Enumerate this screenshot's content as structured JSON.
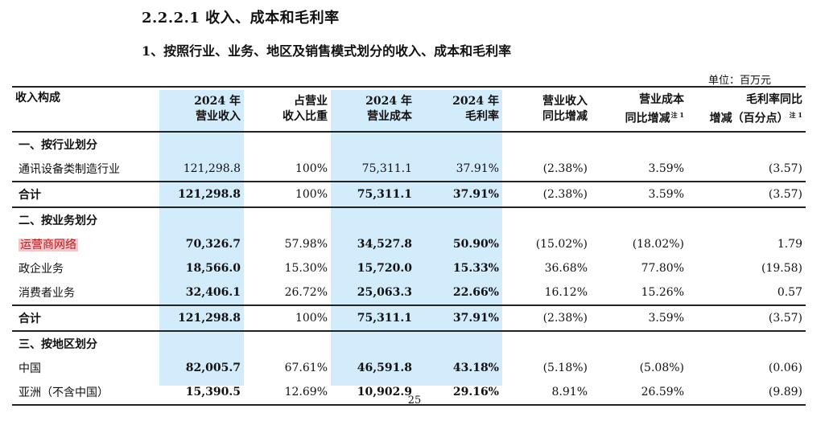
{
  "section_title": "2.2.2.1 收入、成本和毛利率",
  "subtitle": "1、按照行业、业务、地区及销售模式划分的收入、成本和毛利率",
  "unit": "单位：百万元",
  "highlight_color": "#d3ecfb",
  "mark_color": "#f6c7c9",
  "headers": {
    "composition": "收入构成",
    "revenue_l1": "2024 年",
    "revenue_l2": "营业收入",
    "share_l1": "占营业",
    "share_l2": "收入比重",
    "cost_l1": "2024 年",
    "cost_l2": "营业成本",
    "gm_l1": "2024 年",
    "gm_l2": "毛利率",
    "rev_yoy_l1": "营业收入",
    "rev_yoy_l2": "同比增减",
    "cost_yoy_l1": "营业成本",
    "cost_yoy_l2": "同比增减",
    "cost_yoy_note": "注 1",
    "gm_yoy_l1": "毛利率同比",
    "gm_yoy_l2": "增减（百分点）",
    "gm_yoy_note": "注 1"
  },
  "industry": {
    "title": "一、按行业划分",
    "rows": [
      {
        "name": "通讯设备类制造行业",
        "revenue": "121,298.8",
        "share": "100%",
        "cost": "75,311.1",
        "gm": "37.91%",
        "rev_yoy": "(2.38%)",
        "cost_yoy": "3.59%",
        "gm_yoy": "(3.57)"
      }
    ],
    "total": {
      "name": "合计",
      "revenue": "121,298.8",
      "share": "100%",
      "cost": "75,311.1",
      "gm": "37.91%",
      "rev_yoy": "(2.38%)",
      "cost_yoy": "3.59%",
      "gm_yoy": "(3.57)"
    }
  },
  "business": {
    "title": "二、按业务划分",
    "rows": [
      {
        "name": "运营商网络",
        "revenue": "70,326.7",
        "share": "57.98%",
        "cost": "34,527.8",
        "gm": "50.90%",
        "rev_yoy": "(15.02%)",
        "cost_yoy": "(18.02%)",
        "gm_yoy": "1.79"
      },
      {
        "name": "政企业务",
        "revenue": "18,566.0",
        "share": "15.30%",
        "cost": "15,720.0",
        "gm": "15.33%",
        "rev_yoy": "36.68%",
        "cost_yoy": "77.80%",
        "gm_yoy": "(19.58)"
      },
      {
        "name": "消费者业务",
        "revenue": "32,406.1",
        "share": "26.72%",
        "cost": "25,063.3",
        "gm": "22.66%",
        "rev_yoy": "16.12%",
        "cost_yoy": "15.26%",
        "gm_yoy": "0.57"
      }
    ],
    "total": {
      "name": "合计",
      "revenue": "121,298.8",
      "share": "100%",
      "cost": "75,311.1",
      "gm": "37.91%",
      "rev_yoy": "(2.38%)",
      "cost_yoy": "3.59%",
      "gm_yoy": "(3.57)"
    }
  },
  "region": {
    "title": "三、按地区划分",
    "rows": [
      {
        "name": "中国",
        "revenue": "82,005.7",
        "share": "67.61%",
        "cost": "46,591.8",
        "gm": "43.18%",
        "rev_yoy": "(5.18%)",
        "cost_yoy": "(5.08%)",
        "gm_yoy": "(0.06)"
      },
      {
        "name": "亚洲（不含中国）",
        "revenue": "15,390.5",
        "share": "12.69%",
        "cost": "10,902.9",
        "gm": "29.16%",
        "rev_yoy": "8.91%",
        "cost_yoy": "26.59%",
        "gm_yoy": "(9.89)"
      }
    ]
  },
  "page_number": "25"
}
